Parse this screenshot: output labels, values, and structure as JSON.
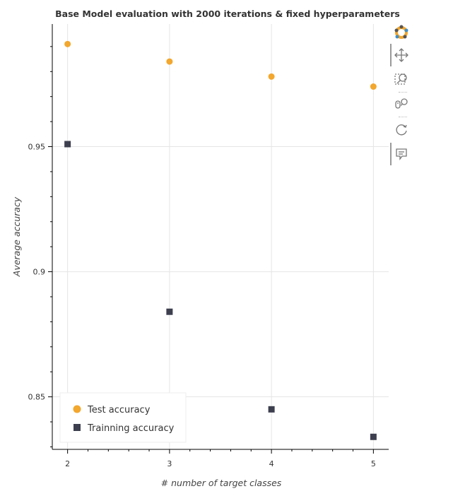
{
  "chart_data": {
    "type": "scatter",
    "title": "Base Model evaluation with 2000 iterations & fixed hyperparameters",
    "xlabel": "# number of target classes",
    "ylabel": "Average accuracy",
    "x_ticks": [
      2,
      3,
      4,
      5
    ],
    "y_ticks": [
      0.85,
      0.9,
      0.95
    ],
    "y_tick_labels": [
      "0.85",
      "0.9",
      "0.95"
    ],
    "xlim": [
      1.85,
      5.15
    ],
    "ylim": [
      0.829,
      0.999
    ],
    "grid": true,
    "legend_position": "bottom-left",
    "series": [
      {
        "name": "Test accuracy",
        "marker": "circle",
        "color": "#f2a72e",
        "x": [
          2,
          3,
          4,
          5
        ],
        "y": [
          0.991,
          0.984,
          0.978,
          0.974
        ]
      },
      {
        "name": "Trainning accuracy",
        "marker": "square",
        "color": "#3d3f4f",
        "x": [
          2,
          3,
          4,
          5
        ],
        "y": [
          0.951,
          0.884,
          0.845,
          0.834
        ]
      }
    ]
  },
  "toolbar": {
    "tools": [
      {
        "name": "bokeh-logo-icon"
      },
      {
        "name": "pan-icon"
      },
      {
        "name": "box-zoom-icon"
      },
      {
        "name": "wheel-zoom-icon"
      },
      {
        "name": "reset-icon"
      },
      {
        "name": "hover-icon"
      }
    ]
  }
}
